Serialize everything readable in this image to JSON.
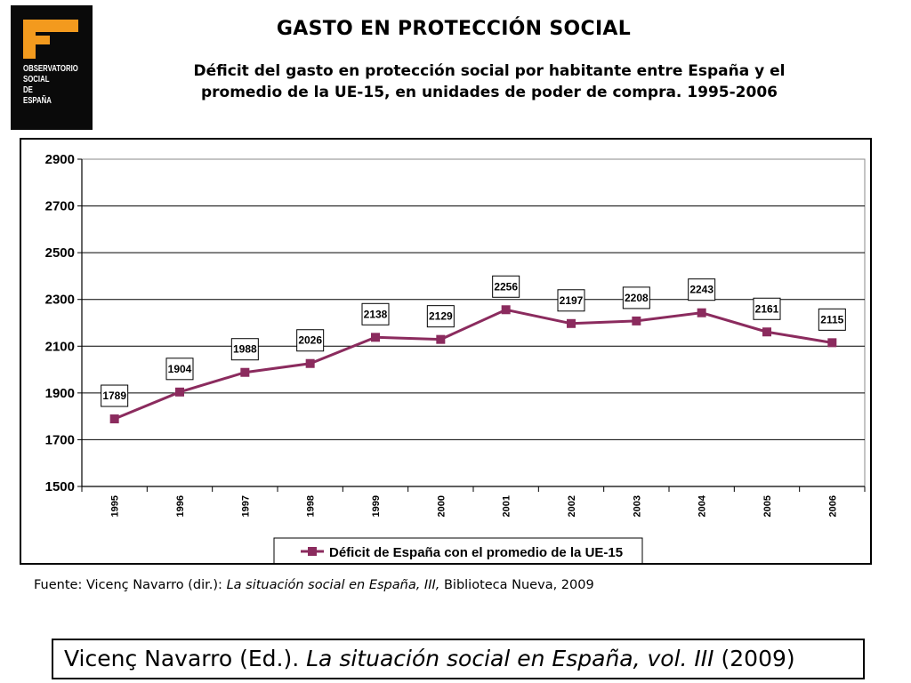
{
  "logo": {
    "lines": [
      "OBSERVATORIO",
      "SOCIAL",
      "DE",
      "ESPAÑA"
    ]
  },
  "header": {
    "title": "GASTO EN PROTECCIÓN SOCIAL",
    "subtitle_line1": "Déficit del gasto en protección social por habitante entre España y el",
    "subtitle_line2": "promedio de la UE-15, en unidades de poder de compra. 1995-2006"
  },
  "chart_data": {
    "type": "line",
    "categories": [
      "1995",
      "1996",
      "1997",
      "1998",
      "1999",
      "2000",
      "2001",
      "2002",
      "2003",
      "2004",
      "2005",
      "2006"
    ],
    "series": [
      {
        "name": "Déficit de España con el promedio de la UE-15",
        "values": [
          1789,
          1904,
          1988,
          2026,
          2138,
          2129,
          2256,
          2197,
          2208,
          2243,
          2161,
          2115
        ],
        "color": "#8b2b5e"
      }
    ],
    "ylim": [
      1500,
      2900
    ],
    "yticks": [
      1500,
      1700,
      1900,
      2100,
      2300,
      2500,
      2700,
      2900
    ],
    "grid": true,
    "legend_position": "bottom",
    "title": "",
    "xlabel": "",
    "ylabel": ""
  },
  "source": {
    "prefix": "Fuente: Vicenç Navarro (dir.): ",
    "title_italic": "La situación social en España, III,",
    "suffix": " Biblioteca Nueva, 2009"
  },
  "footer": {
    "prefix": "Vicenç Navarro (Ed.). ",
    "title_italic": "La situación social en España, vol. III",
    "suffix": " (2009)"
  }
}
